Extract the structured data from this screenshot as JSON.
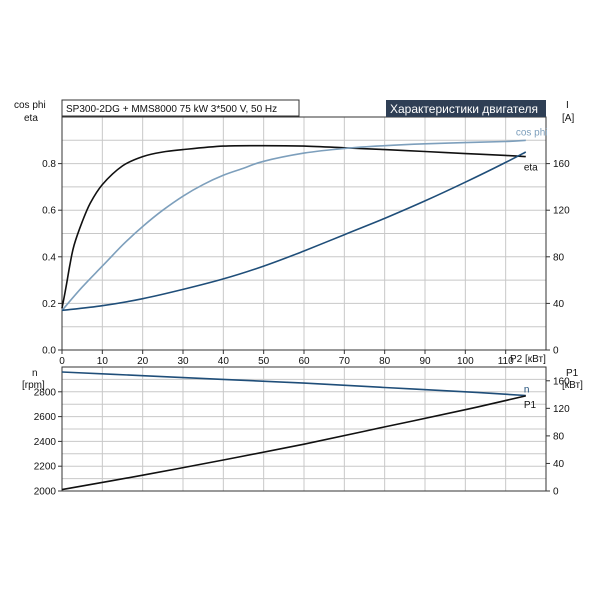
{
  "header": {
    "pump_label": "SP300-2DG + MMS8000  75 kW  3*500 V, 50 Hz",
    "title": "Характеристики двигателя"
  },
  "colors": {
    "eta": "#111111",
    "cos_phi": "#7d9fbc",
    "current": "#1f4e79",
    "speed": "#1f4e79",
    "p1": "#111111",
    "title_bg": "#2f3f55"
  },
  "chart_data": [
    {
      "type": "line",
      "title": "Характеристики двигателя",
      "xlabel": "P2 [кВт]",
      "x_ticks": [
        "0",
        "10",
        "20",
        "30",
        "40",
        "50",
        "60",
        "70",
        "80",
        "90",
        "100",
        "110"
      ],
      "xlim": [
        0,
        120
      ],
      "ylabel_left": [
        "cos phi",
        "eta"
      ],
      "ylim_left": [
        0,
        1.0
      ],
      "y_ticks_left": [
        "0.0",
        "0.2",
        "0.4",
        "0.6",
        "0.8"
      ],
      "ylabel_right": [
        "I",
        "[A]"
      ],
      "ylim_right": [
        0,
        200
      ],
      "y_ticks_right": [
        "0",
        "40",
        "80",
        "120",
        "160"
      ],
      "grid": true,
      "series": [
        {
          "name": "eta",
          "axis": "left",
          "x": [
            0,
            1,
            2,
            3,
            5,
            7,
            10,
            15,
            20,
            25,
            30,
            40,
            50,
            60,
            70,
            80,
            90,
            100,
            110,
            115
          ],
          "y": [
            0.18,
            0.27,
            0.37,
            0.45,
            0.55,
            0.63,
            0.71,
            0.79,
            0.83,
            0.85,
            0.86,
            0.875,
            0.877,
            0.875,
            0.868,
            0.86,
            0.852,
            0.843,
            0.835,
            0.83
          ]
        },
        {
          "name": "cos phi",
          "axis": "left",
          "x": [
            0,
            5,
            10,
            15,
            20,
            25,
            30,
            35,
            40,
            45,
            50,
            60,
            70,
            80,
            90,
            100,
            110,
            115
          ],
          "y": [
            0.17,
            0.27,
            0.36,
            0.45,
            0.53,
            0.6,
            0.66,
            0.71,
            0.75,
            0.78,
            0.81,
            0.845,
            0.865,
            0.877,
            0.885,
            0.89,
            0.895,
            0.9
          ]
        },
        {
          "name": "I",
          "axis": "right",
          "x": [
            0,
            10,
            20,
            30,
            40,
            50,
            60,
            70,
            80,
            90,
            100,
            110,
            115
          ],
          "y": [
            34,
            38,
            44,
            52,
            61,
            72,
            85,
            99,
            113,
            128,
            144,
            161,
            170
          ]
        }
      ]
    },
    {
      "type": "line",
      "xlim": [
        0,
        120
      ],
      "ylabel_left": [
        "n",
        "[rpm]"
      ],
      "ylim_left": [
        2000,
        3000
      ],
      "y_ticks_left": [
        "2000",
        "2200",
        "2400",
        "2600",
        "2800"
      ],
      "ylabel_right": [
        "P1",
        "[кВт]"
      ],
      "ylim_right": [
        0,
        180
      ],
      "y_ticks_right": [
        "0",
        "40",
        "80",
        "120",
        "160"
      ],
      "grid": true,
      "series": [
        {
          "name": "n",
          "axis": "left",
          "x": [
            0,
            20,
            40,
            60,
            80,
            100,
            115
          ],
          "y": [
            2960,
            2930,
            2900,
            2870,
            2835,
            2800,
            2770
          ]
        },
        {
          "name": "P1",
          "axis": "right",
          "x": [
            0,
            20,
            40,
            60,
            80,
            100,
            115
          ],
          "y": [
            2,
            23,
            45,
            68,
            93,
            118,
            138
          ]
        }
      ]
    }
  ]
}
